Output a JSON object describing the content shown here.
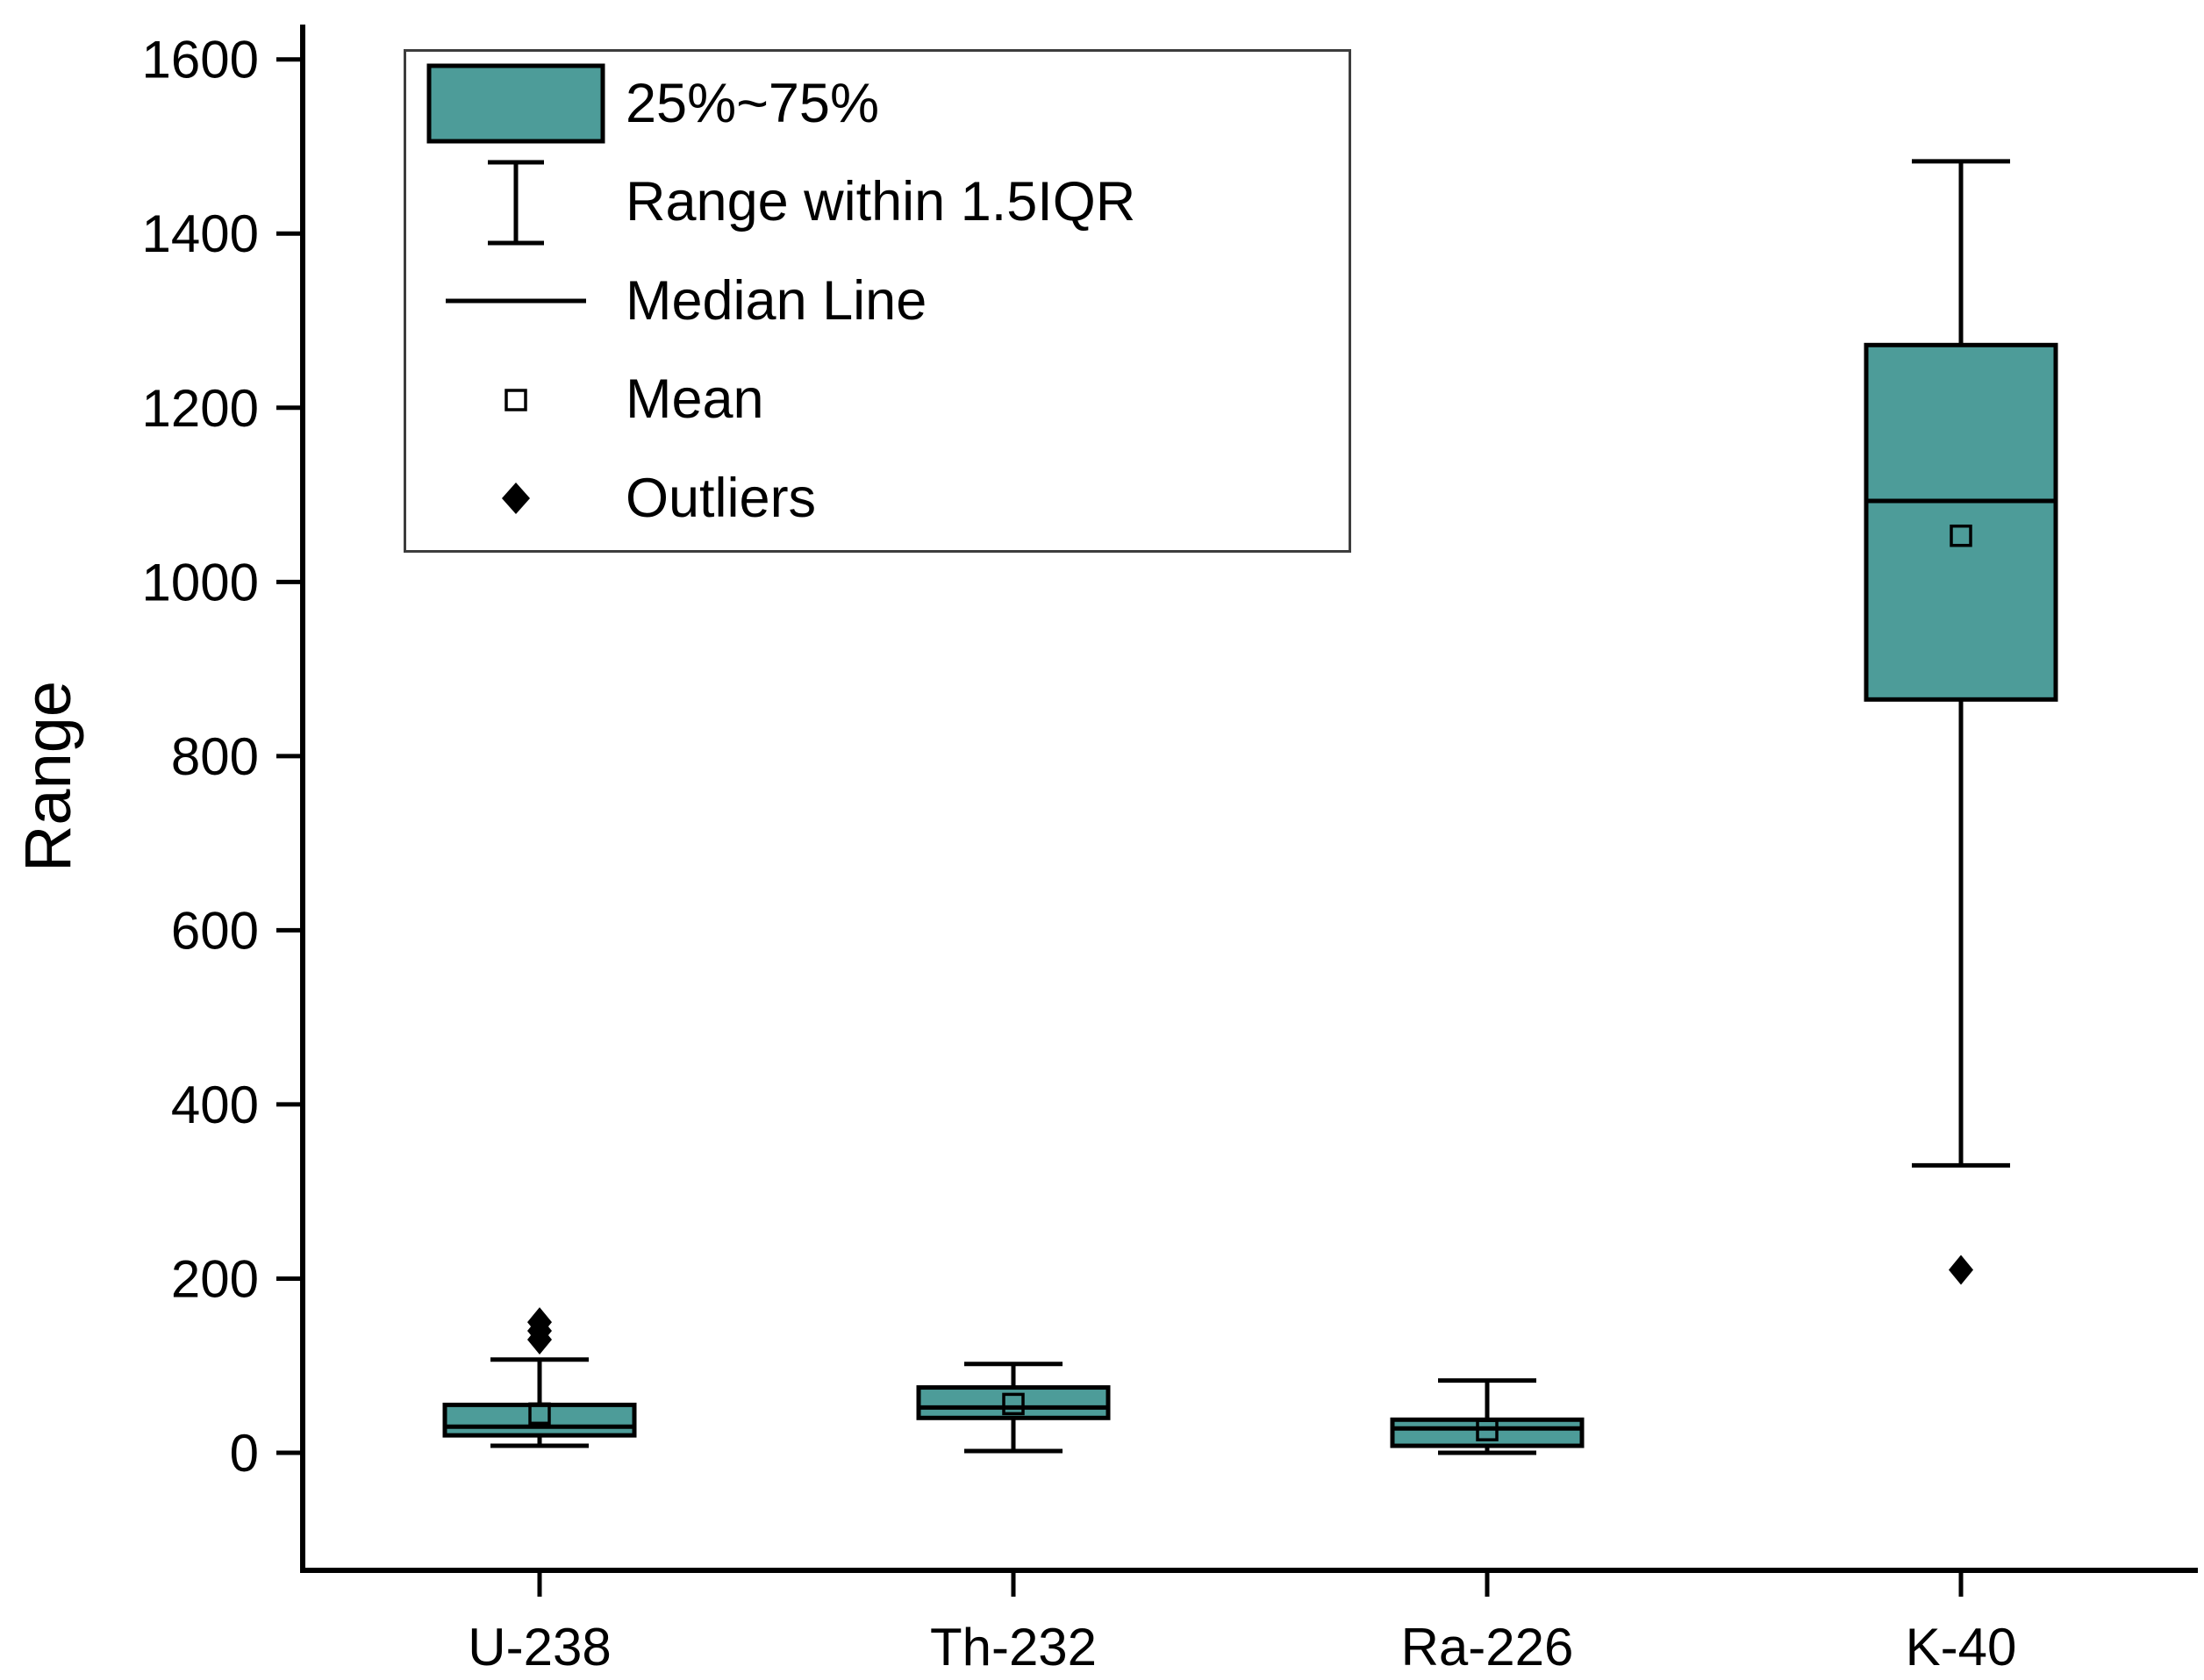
{
  "chart_data": {
    "type": "box",
    "title": "",
    "ylabel": "Range",
    "xlabel": "",
    "categories": [
      "U-238",
      "Th-232",
      "Ra-226",
      "K-40"
    ],
    "ylim": [
      -135,
      1640
    ],
    "yticks": [
      0,
      200,
      400,
      600,
      800,
      1000,
      1200,
      1400,
      1600
    ],
    "grid": false,
    "box_fill": "#4d9c99",
    "box_stroke": "#000000",
    "legend_position": "top-left",
    "series": [
      {
        "category": "U-238",
        "whisker_low": 8,
        "q1": 20,
        "median": 30,
        "q3": 55,
        "whisker_high": 107,
        "mean": 45,
        "outliers": [
          130,
          140,
          150
        ]
      },
      {
        "category": "Th-232",
        "whisker_low": 2,
        "q1": 40,
        "median": 52,
        "q3": 75,
        "whisker_high": 102,
        "mean": 56,
        "outliers": []
      },
      {
        "category": "Ra-226",
        "whisker_low": 0,
        "q1": 8,
        "median": 28,
        "q3": 38,
        "whisker_high": 83,
        "mean": 26,
        "outliers": []
      },
      {
        "category": "K-40",
        "whisker_low": 330,
        "q1": 865,
        "median": 1093,
        "q3": 1272,
        "whisker_high": 1483,
        "mean": 1053,
        "outliers": [
          210
        ]
      }
    ],
    "legend": {
      "items": [
        {
          "label": "25%~75%",
          "marker": "box"
        },
        {
          "label": "Range within 1.5IQR",
          "marker": "whisker"
        },
        {
          "label": "Median Line",
          "marker": "line"
        },
        {
          "label": "Mean",
          "marker": "open-square"
        },
        {
          "label": "Outliers",
          "marker": "diamond"
        }
      ]
    }
  }
}
